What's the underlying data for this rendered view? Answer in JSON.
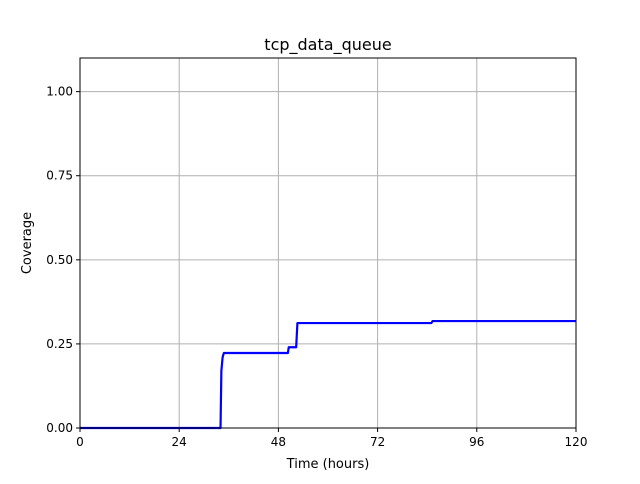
{
  "chart_data": {
    "type": "line",
    "title": "tcp_data_queue",
    "xlabel": "Time (hours)",
    "ylabel": "Coverage",
    "xlim": [
      0,
      120
    ],
    "ylim": [
      0,
      1.1
    ],
    "xticks": [
      0,
      24,
      48,
      72,
      96,
      120
    ],
    "xtick_labels": [
      "0",
      "24",
      "48",
      "72",
      "96",
      "120"
    ],
    "yticks": [
      0,
      0.25,
      0.5,
      0.75,
      1.0
    ],
    "ytick_labels": [
      "0.00",
      "0.25",
      "0.50",
      "0.75",
      "1.00"
    ],
    "grid": true,
    "series": [
      {
        "color": "#0000ff",
        "x": [
          0,
          34.0,
          34.2,
          34.5,
          34.8,
          50.3,
          50.5,
          52.3,
          52.6,
          85.0,
          85.3,
          120
        ],
        "y": [
          0.0,
          0.0,
          0.17,
          0.21,
          0.223,
          0.223,
          0.24,
          0.24,
          0.312,
          0.312,
          0.318,
          0.318
        ]
      }
    ]
  }
}
